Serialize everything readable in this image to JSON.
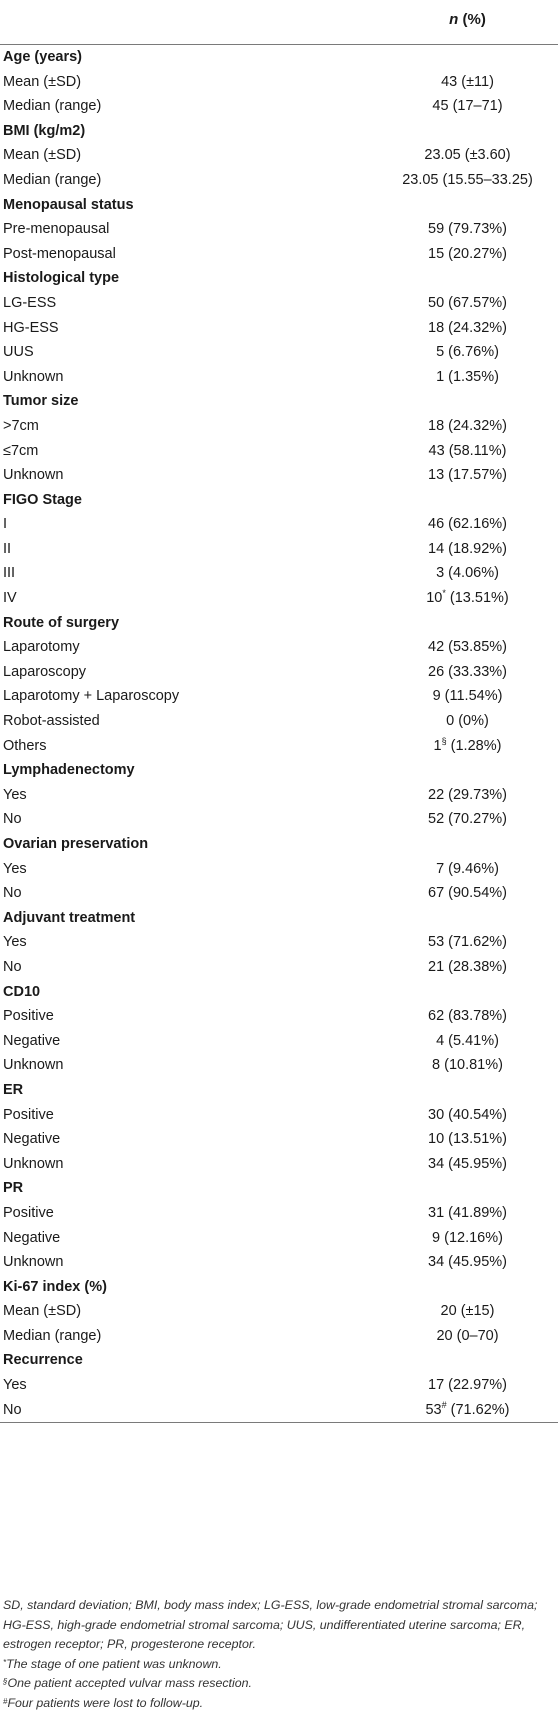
{
  "header": {
    "col_label_italic": "n",
    "col_label_rest": " (%)"
  },
  "rows": [
    {
      "type": "section",
      "label": "Age (years)"
    },
    {
      "label": "Mean (±SD)",
      "value": "43 (±11)"
    },
    {
      "label": "Median (range)",
      "value": "45 (17–71)"
    },
    {
      "type": "section",
      "label": "BMI (kg/m2)"
    },
    {
      "label": "Mean (±SD)",
      "value": "23.05 (±3.60)"
    },
    {
      "label": "Median (range)",
      "value": "23.05 (15.55–33.25)"
    },
    {
      "type": "section",
      "label": "Menopausal status"
    },
    {
      "label": "Pre-menopausal",
      "value": "59 (79.73%)"
    },
    {
      "label": "Post-menopausal",
      "value": "15 (20.27%)"
    },
    {
      "type": "section",
      "label": "Histological type"
    },
    {
      "label": "LG-ESS",
      "value": "50 (67.57%)"
    },
    {
      "label": "HG-ESS",
      "value": "18 (24.32%)"
    },
    {
      "label": "UUS",
      "value": "5 (6.76%)"
    },
    {
      "label": "Unknown",
      "value": "1 (1.35%)"
    },
    {
      "type": "section",
      "label": "Tumor size"
    },
    {
      "label": ">7cm",
      "value": "18 (24.32%)"
    },
    {
      "label": "≤7cm",
      "value": "43 (58.11%)"
    },
    {
      "label": "Unknown",
      "value": "13 (17.57%)"
    },
    {
      "type": "section",
      "label": "FIGO Stage"
    },
    {
      "label": "I",
      "value": "46 (62.16%)"
    },
    {
      "label": "II",
      "value": "14 (18.92%)"
    },
    {
      "label": "III",
      "value": "3 (4.06%)"
    },
    {
      "label": "IV",
      "value": "10",
      "sup": "*",
      "value_rest": " (13.51%)"
    },
    {
      "type": "section",
      "label": "Route of surgery"
    },
    {
      "label": "Laparotomy",
      "value": "42 (53.85%)"
    },
    {
      "label": "Laparoscopy",
      "value": "26 (33.33%)"
    },
    {
      "label": "Laparotomy + Laparoscopy",
      "value": "9 (11.54%)"
    },
    {
      "label": "Robot-assisted",
      "value": "0 (0%)"
    },
    {
      "label": "Others",
      "value": "1",
      "sup": "§",
      "value_rest": " (1.28%)"
    },
    {
      "type": "section",
      "label": "Lymphadenectomy"
    },
    {
      "label": "Yes",
      "value": "22 (29.73%)"
    },
    {
      "label": "No",
      "value": "52 (70.27%)"
    },
    {
      "type": "section",
      "label": "Ovarian preservation"
    },
    {
      "label": "Yes",
      "value": "7 (9.46%)"
    },
    {
      "label": "No",
      "value": "67 (90.54%)"
    },
    {
      "type": "section",
      "label": "Adjuvant treatment"
    },
    {
      "label": "Yes",
      "value": "53 (71.62%)"
    },
    {
      "label": "No",
      "value": "21 (28.38%)"
    },
    {
      "type": "section",
      "label": "CD10"
    },
    {
      "label": "Positive",
      "value": "62 (83.78%)"
    },
    {
      "label": "Negative",
      "value": "4 (5.41%)"
    },
    {
      "label": "Unknown",
      "value": "8 (10.81%)"
    },
    {
      "type": "section",
      "label": "ER"
    },
    {
      "label": "Positive",
      "value": "30 (40.54%)"
    },
    {
      "label": "Negative",
      "value": "10 (13.51%)"
    },
    {
      "label": "Unknown",
      "value": "34 (45.95%)"
    },
    {
      "type": "section",
      "label": "PR"
    },
    {
      "label": "Positive",
      "value": "31 (41.89%)"
    },
    {
      "label": "Negative",
      "value": "9 (12.16%)"
    },
    {
      "label": "Unknown",
      "value": "34 (45.95%)"
    },
    {
      "type": "section",
      "label": "Ki-67 index (%)"
    },
    {
      "label": "Mean (±SD)",
      "value": "20 (±15)"
    },
    {
      "label": "Median (range)",
      "value": "20 (0–70)"
    },
    {
      "type": "section",
      "label": "Recurrence"
    },
    {
      "label": "Yes",
      "value": "17 (22.97%)"
    },
    {
      "label": "No",
      "value": "53",
      "sup": "#",
      "value_rest": " (71.62%)"
    }
  ],
  "footnotes": {
    "abbrev": "SD, standard deviation; BMI, body mass index; LG-ESS, low-grade endometrial stromal sarcoma; HG-ESS, high-grade endometrial stromal sarcoma; UUS, undifferentiated uterine sarcoma; ER, estrogen receptor; PR, progesterone receptor.",
    "notes": [
      {
        "mark": "*",
        "text": "The stage of one patient was unknown."
      },
      {
        "mark": "§",
        "text": "One patient accepted vulvar mass resection."
      },
      {
        "mark": "#",
        "text": "Four patients were lost to follow-up."
      }
    ]
  }
}
